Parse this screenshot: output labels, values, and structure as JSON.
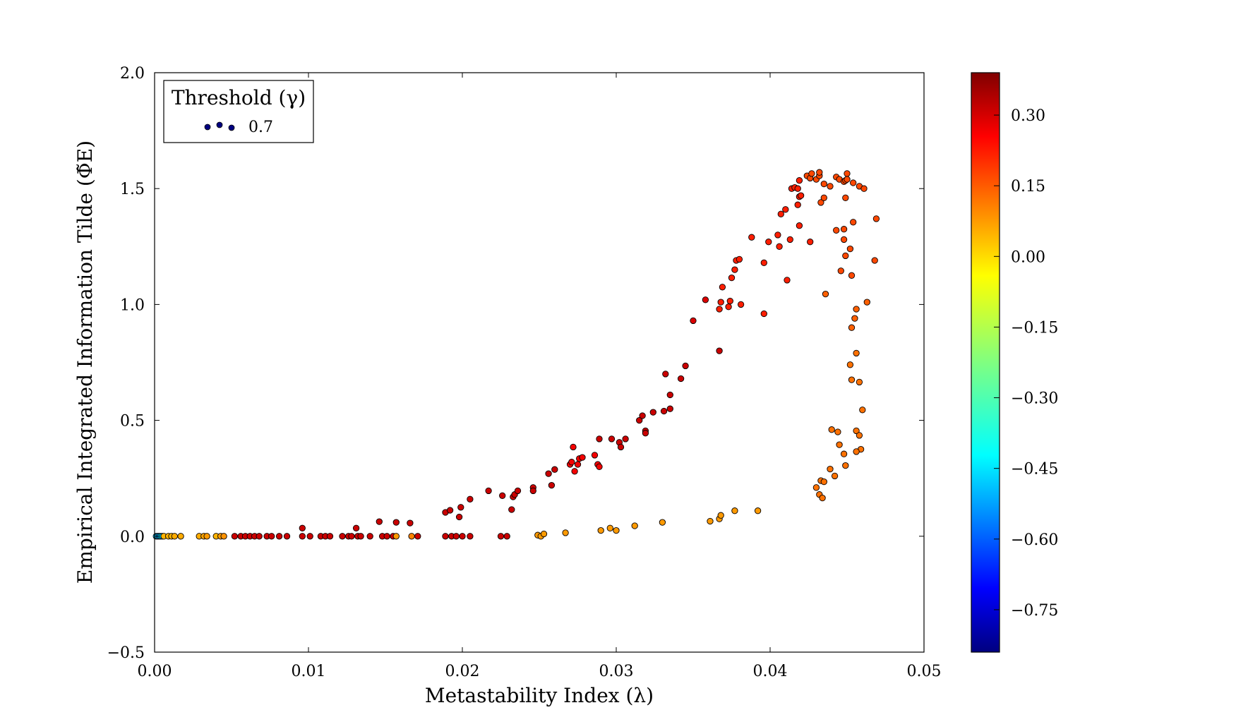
{
  "chart_data": {
    "type": "scatter",
    "title": "",
    "xlabel": "Metastability Index (λ)",
    "ylabel": "Empirical Integrated Information Tilde (Φ̃E)",
    "xlim": [
      0.0,
      0.05
    ],
    "ylim": [
      -0.5,
      2.0
    ],
    "x_ticks": [
      "0.00",
      "0.01",
      "0.02",
      "0.03",
      "0.04",
      "0.05"
    ],
    "y_ticks": [
      "−0.5",
      "0.0",
      "0.5",
      "1.0",
      "1.5",
      "2.0"
    ],
    "grid": false,
    "legend": {
      "title": "Threshold (γ)",
      "placement": "top-left",
      "entries": [
        "0.7"
      ],
      "marker_color": "#000080"
    },
    "colorbar": {
      "colormap": "jet",
      "range": [
        -0.84,
        0.39
      ],
      "tick_values": [
        0.3,
        0.15,
        0.0,
        -0.15,
        -0.3,
        -0.45,
        -0.6,
        -0.75
      ],
      "tick_labels": [
        "0.30",
        "0.15",
        "0.00",
        "−0.15",
        "−0.30",
        "−0.45",
        "−0.60",
        "−0.75"
      ]
    },
    "series": [
      {
        "marker": "circle",
        "columns": [
          "x",
          "y",
          "color_value"
        ],
        "points": [
          [
            0.0001,
            0.0,
            -0.45
          ],
          [
            0.0002,
            0.0,
            -0.45
          ],
          [
            0.0003,
            0.0,
            -0.5
          ],
          [
            0.0004,
            0.0,
            -0.4
          ],
          [
            0.0005,
            0.0,
            -0.45
          ],
          [
            0.0006,
            0.0,
            0.02
          ],
          [
            0.0009,
            0.0,
            0.02
          ],
          [
            0.0011,
            0.0,
            0.02
          ],
          [
            0.0013,
            0.0,
            0.03
          ],
          [
            0.0017,
            0.0,
            0.03
          ],
          [
            0.0029,
            0.0,
            0.03
          ],
          [
            0.0032,
            0.0,
            0.04
          ],
          [
            0.0034,
            0.0,
            0.05
          ],
          [
            0.004,
            0.0,
            0.02
          ],
          [
            0.0043,
            0.0,
            0.05
          ],
          [
            0.0045,
            0.0,
            0.06
          ],
          [
            0.0052,
            0.0,
            0.3
          ],
          [
            0.0056,
            0.0,
            0.3
          ],
          [
            0.0059,
            0.0,
            0.3
          ],
          [
            0.0062,
            0.0,
            0.3
          ],
          [
            0.0065,
            0.0,
            0.3
          ],
          [
            0.0068,
            0.0,
            0.3
          ],
          [
            0.0073,
            0.0,
            0.3
          ],
          [
            0.0076,
            0.0,
            0.3
          ],
          [
            0.0081,
            0.0,
            0.3
          ],
          [
            0.0086,
            0.0,
            0.3
          ],
          [
            0.0096,
            0.0,
            0.3
          ],
          [
            0.0101,
            0.0,
            0.3
          ],
          [
            0.0108,
            0.0,
            0.3
          ],
          [
            0.0111,
            0.0,
            0.3
          ],
          [
            0.0114,
            0.0,
            0.3
          ],
          [
            0.0122,
            0.0,
            0.3
          ],
          [
            0.0126,
            0.0,
            0.3
          ],
          [
            0.0128,
            0.0,
            0.3
          ],
          [
            0.0132,
            0.0,
            0.3
          ],
          [
            0.0134,
            0.0,
            0.3
          ],
          [
            0.014,
            0.0,
            0.3
          ],
          [
            0.0148,
            0.0,
            0.3
          ],
          [
            0.0151,
            0.0,
            0.3
          ],
          [
            0.0155,
            0.0,
            0.3
          ],
          [
            0.0157,
            0.0,
            0.05
          ],
          [
            0.0167,
            0.0,
            0.08
          ],
          [
            0.0171,
            0.0,
            0.3
          ],
          [
            0.0189,
            0.0,
            0.3
          ],
          [
            0.0193,
            0.0,
            0.3
          ],
          [
            0.0196,
            0.0,
            0.3
          ],
          [
            0.02,
            0.0,
            0.3
          ],
          [
            0.0205,
            0.0,
            0.3
          ],
          [
            0.0225,
            0.0,
            0.3
          ],
          [
            0.0229,
            0.0,
            0.3
          ],
          [
            0.0096,
            0.035,
            0.3
          ],
          [
            0.0131,
            0.035,
            0.3
          ],
          [
            0.0146,
            0.063,
            0.3
          ],
          [
            0.0157,
            0.06,
            0.3
          ],
          [
            0.0166,
            0.057,
            0.3
          ],
          [
            0.0189,
            0.103,
            0.3
          ],
          [
            0.0192,
            0.112,
            0.3
          ],
          [
            0.0198,
            0.083,
            0.3
          ],
          [
            0.0199,
            0.125,
            0.3
          ],
          [
            0.0205,
            0.16,
            0.3
          ],
          [
            0.0217,
            0.196,
            0.3
          ],
          [
            0.0226,
            0.175,
            0.3
          ],
          [
            0.0232,
            0.115,
            0.3
          ],
          [
            0.0233,
            0.17,
            0.3
          ],
          [
            0.0234,
            0.18,
            0.3
          ],
          [
            0.0236,
            0.196,
            0.3
          ],
          [
            0.0246,
            0.21,
            0.3
          ],
          [
            0.0246,
            0.196,
            0.3
          ],
          [
            0.0256,
            0.27,
            0.3
          ],
          [
            0.0258,
            0.22,
            0.3
          ],
          [
            0.026,
            0.288,
            0.3
          ],
          [
            0.027,
            0.31,
            0.25
          ],
          [
            0.0271,
            0.32,
            0.25
          ],
          [
            0.0272,
            0.385,
            0.25
          ],
          [
            0.0273,
            0.28,
            0.25
          ],
          [
            0.0275,
            0.31,
            0.25
          ],
          [
            0.0276,
            0.335,
            0.25
          ],
          [
            0.0278,
            0.34,
            0.25
          ],
          [
            0.0286,
            0.35,
            0.25
          ],
          [
            0.0288,
            0.31,
            0.25
          ],
          [
            0.0289,
            0.3,
            0.25
          ],
          [
            0.0289,
            0.42,
            0.3
          ],
          [
            0.0297,
            0.42,
            0.3
          ],
          [
            0.0302,
            0.405,
            0.3
          ],
          [
            0.0303,
            0.385,
            0.3
          ],
          [
            0.0306,
            0.42,
            0.3
          ],
          [
            0.0315,
            0.5,
            0.3
          ],
          [
            0.0317,
            0.52,
            0.3
          ],
          [
            0.0319,
            0.455,
            0.3
          ],
          [
            0.0319,
            0.445,
            0.3
          ],
          [
            0.0324,
            0.535,
            0.3
          ],
          [
            0.0331,
            0.54,
            0.3
          ],
          [
            0.0332,
            0.7,
            0.3
          ],
          [
            0.0335,
            0.55,
            0.3
          ],
          [
            0.0335,
            0.61,
            0.3
          ],
          [
            0.0342,
            0.68,
            0.3
          ],
          [
            0.0345,
            0.735,
            0.3
          ],
          [
            0.035,
            0.93,
            0.28
          ],
          [
            0.0358,
            1.02,
            0.28
          ],
          [
            0.0367,
            0.8,
            0.3
          ],
          [
            0.0367,
            0.98,
            0.2
          ],
          [
            0.0368,
            1.01,
            0.2
          ],
          [
            0.0369,
            1.075,
            0.2
          ],
          [
            0.0373,
            0.99,
            0.2
          ],
          [
            0.0374,
            1.015,
            0.2
          ],
          [
            0.0375,
            1.115,
            0.2
          ],
          [
            0.0377,
            1.15,
            0.2
          ],
          [
            0.0378,
            1.19,
            0.2
          ],
          [
            0.038,
            1.195,
            0.2
          ],
          [
            0.0381,
            1.0,
            0.2
          ],
          [
            0.0388,
            1.29,
            0.2
          ],
          [
            0.0396,
            0.96,
            0.2
          ],
          [
            0.0396,
            1.18,
            0.2
          ],
          [
            0.0399,
            1.27,
            0.2
          ],
          [
            0.0405,
            1.3,
            0.2
          ],
          [
            0.0406,
            1.25,
            0.2
          ],
          [
            0.0407,
            1.39,
            0.2
          ],
          [
            0.041,
            1.41,
            0.2
          ],
          [
            0.0411,
            1.105,
            0.2
          ],
          [
            0.0413,
            1.28,
            0.2
          ],
          [
            0.0414,
            1.5,
            0.2
          ],
          [
            0.0416,
            1.505,
            0.2
          ],
          [
            0.0418,
            1.5,
            0.2
          ],
          [
            0.0418,
            1.43,
            0.2
          ],
          [
            0.0419,
            1.34,
            0.2
          ],
          [
            0.0419,
            1.465,
            0.2
          ],
          [
            0.042,
            1.47,
            0.2
          ],
          [
            0.0419,
            1.535,
            0.2
          ],
          [
            0.0424,
            1.555,
            0.15
          ],
          [
            0.0426,
            1.27,
            0.2
          ],
          [
            0.0426,
            1.545,
            0.15
          ],
          [
            0.0427,
            1.565,
            0.15
          ],
          [
            0.043,
            1.54,
            0.15
          ],
          [
            0.0432,
            1.555,
            0.15
          ],
          [
            0.0432,
            1.57,
            0.15
          ],
          [
            0.0433,
            1.44,
            0.15
          ],
          [
            0.0435,
            1.52,
            0.15
          ],
          [
            0.0435,
            1.46,
            0.15
          ],
          [
            0.0439,
            1.51,
            0.15
          ],
          [
            0.0443,
            1.55,
            0.15
          ],
          [
            0.0445,
            1.54,
            0.15
          ],
          [
            0.0448,
            1.53,
            0.15
          ],
          [
            0.0449,
            1.535,
            0.15
          ],
          [
            0.045,
            1.565,
            0.15
          ],
          [
            0.045,
            1.54,
            0.15
          ],
          [
            0.0449,
            1.46,
            0.15
          ],
          [
            0.0454,
            1.525,
            0.15
          ],
          [
            0.0458,
            1.51,
            0.15
          ],
          [
            0.0461,
            1.5,
            0.15
          ],
          [
            0.0469,
            1.37,
            0.15
          ],
          [
            0.0468,
            1.19,
            0.15
          ],
          [
            0.0443,
            1.32,
            0.15
          ],
          [
            0.0448,
            1.325,
            0.15
          ],
          [
            0.0448,
            1.28,
            0.15
          ],
          [
            0.0452,
            1.24,
            0.15
          ],
          [
            0.0449,
            1.21,
            0.15
          ],
          [
            0.0454,
            1.355,
            0.15
          ],
          [
            0.0446,
            1.145,
            0.15
          ],
          [
            0.0453,
            1.125,
            0.15
          ],
          [
            0.0436,
            1.045,
            0.12
          ],
          [
            0.0463,
            1.01,
            0.12
          ],
          [
            0.0456,
            0.98,
            0.12
          ],
          [
            0.0455,
            0.94,
            0.12
          ],
          [
            0.0453,
            0.9,
            0.12
          ],
          [
            0.0456,
            0.79,
            0.1
          ],
          [
            0.0452,
            0.74,
            0.1
          ],
          [
            0.0453,
            0.675,
            0.1
          ],
          [
            0.0458,
            0.665,
            0.1
          ],
          [
            0.046,
            0.545,
            0.1
          ],
          [
            0.044,
            0.46,
            0.1
          ],
          [
            0.0444,
            0.45,
            0.1
          ],
          [
            0.0456,
            0.455,
            0.1
          ],
          [
            0.0458,
            0.435,
            0.1
          ],
          [
            0.0445,
            0.395,
            0.1
          ],
          [
            0.0459,
            0.375,
            0.1
          ],
          [
            0.0456,
            0.365,
            0.1
          ],
          [
            0.0448,
            0.355,
            0.1
          ],
          [
            0.0449,
            0.305,
            0.1
          ],
          [
            0.0439,
            0.29,
            0.1
          ],
          [
            0.0442,
            0.26,
            0.1
          ],
          [
            0.0433,
            0.24,
            0.1
          ],
          [
            0.0435,
            0.235,
            0.1
          ],
          [
            0.043,
            0.21,
            0.1
          ],
          [
            0.0432,
            0.18,
            0.1
          ],
          [
            0.0434,
            0.165,
            0.1
          ],
          [
            0.0249,
            0.005,
            0.05
          ],
          [
            0.0251,
            0.0,
            0.05
          ],
          [
            0.0253,
            0.01,
            0.05
          ],
          [
            0.0267,
            0.015,
            0.05
          ],
          [
            0.029,
            0.025,
            0.05
          ],
          [
            0.0296,
            0.035,
            0.05
          ],
          [
            0.03,
            0.025,
            0.05
          ],
          [
            0.0312,
            0.045,
            0.05
          ],
          [
            0.033,
            0.06,
            0.05
          ],
          [
            0.0361,
            0.065,
            0.05
          ],
          [
            0.0367,
            0.075,
            0.05
          ],
          [
            0.0368,
            0.09,
            0.05
          ],
          [
            0.0377,
            0.11,
            0.05
          ],
          [
            0.0392,
            0.11,
            0.05
          ]
        ]
      }
    ]
  }
}
